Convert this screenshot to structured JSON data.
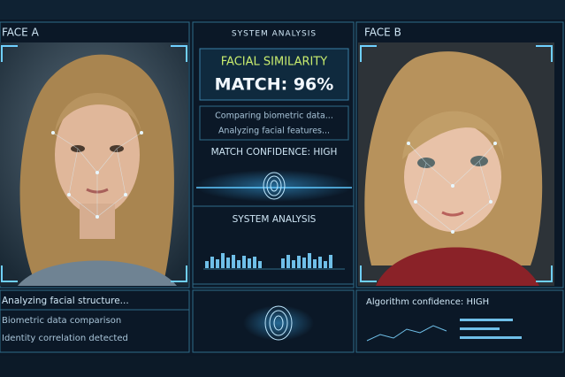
{
  "header": {
    "face_a": "FACE A",
    "face_b": "FACE B",
    "center_title": "SYSTEM ANALYSIS"
  },
  "result": {
    "title": "FACIAL SIMILARITY",
    "match": "MATCH: 96%",
    "status": [
      "Comparing biometric data...",
      "Analyzing facial features..."
    ],
    "confidence": "MATCH CONFIDENCE: HIGH"
  },
  "analysis_title": "SYSTEM ANALYSIS",
  "left_log": [
    "Analyzing facial structure...",
    "Biometric data comparison",
    "Identity correlation detected"
  ],
  "right_log": "Algorithm confidence: HIGH"
}
